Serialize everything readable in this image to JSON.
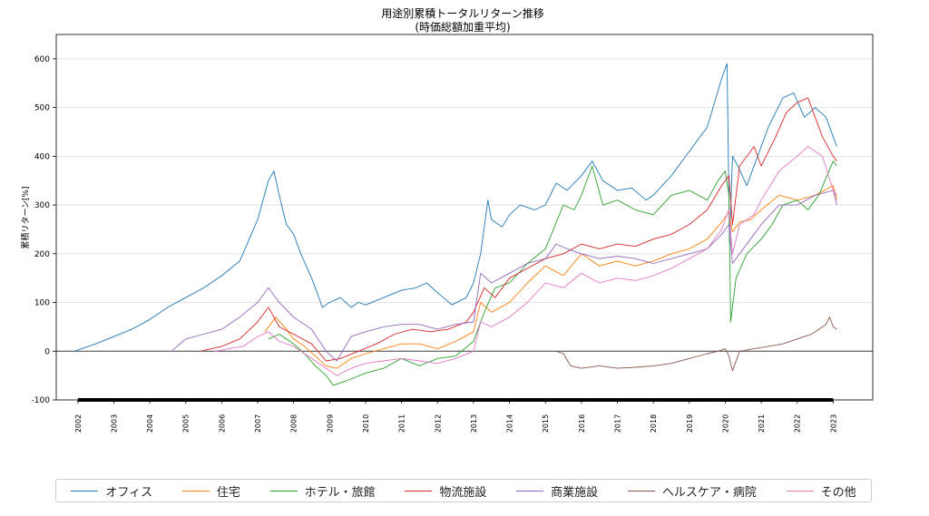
{
  "chart_data": {
    "type": "line",
    "title": "用途別累積トータルリターン推移",
    "subtitle": "(時価総額加重平均)",
    "xlabel": "",
    "ylabel": "累積リターン[%]",
    "xlim": [
      2001.4,
      2024.1
    ],
    "ylim": [
      -100,
      650
    ],
    "yticks": [
      -100,
      0,
      100,
      200,
      300,
      400,
      500,
      600
    ],
    "xticks": [
      "2002",
      "2003",
      "2004",
      "2005",
      "2006",
      "2007",
      "2008",
      "2009",
      "2010",
      "2011",
      "2012",
      "2013",
      "2014",
      "2015",
      "2016",
      "2017",
      "2018",
      "2019",
      "2020",
      "2021",
      "2022",
      "2023"
    ],
    "grid": "y",
    "legend_position": "bottom",
    "series": [
      {
        "name": "オフィス",
        "color": "#1f77b4",
        "x": [
          2001.9,
          2002.5,
          2003.0,
          2003.5,
          2004.0,
          2004.5,
          2005.0,
          2005.5,
          2006.0,
          2006.5,
          2007.0,
          2007.3,
          2007.45,
          2007.6,
          2007.8,
          2008.0,
          2008.2,
          2008.5,
          2008.8,
          2009.0,
          2009.3,
          2009.6,
          2009.8,
          2010.0,
          2010.5,
          2011.0,
          2011.4,
          2011.7,
          2012.0,
          2012.4,
          2012.8,
          2013.0,
          2013.2,
          2013.4,
          2013.5,
          2013.8,
          2014.0,
          2014.3,
          2014.7,
          2015.0,
          2015.3,
          2015.6,
          2016.0,
          2016.3,
          2016.6,
          2017.0,
          2017.4,
          2017.8,
          2018.0,
          2018.5,
          2019.0,
          2019.5,
          2019.9,
          2020.05,
          2020.12,
          2020.2,
          2020.35,
          2020.6,
          2020.9,
          2021.2,
          2021.6,
          2021.9,
          2022.2,
          2022.5,
          2022.8,
          2023.0,
          2023.1
        ],
        "y": [
          0,
          15,
          30,
          45,
          65,
          90,
          110,
          130,
          155,
          185,
          270,
          350,
          370,
          320,
          260,
          240,
          200,
          150,
          90,
          100,
          110,
          90,
          100,
          95,
          110,
          125,
          130,
          140,
          120,
          95,
          110,
          140,
          200,
          310,
          270,
          255,
          280,
          300,
          290,
          300,
          345,
          330,
          360,
          390,
          350,
          330,
          335,
          310,
          320,
          360,
          410,
          460,
          560,
          590,
          220,
          400,
          380,
          340,
          400,
          460,
          520,
          530,
          480,
          500,
          480,
          440,
          420
        ]
      },
      {
        "name": "住宅",
        "color": "#ff7f0e",
        "x": [
          2007.2,
          2007.5,
          2007.8,
          2008.0,
          2008.3,
          2008.6,
          2008.9,
          2009.2,
          2009.6,
          2010.0,
          2010.5,
          2011.0,
          2011.5,
          2012.0,
          2012.5,
          2013.0,
          2013.2,
          2013.5,
          2014.0,
          2014.5,
          2015.0,
          2015.5,
          2016.0,
          2016.5,
          2017.0,
          2017.5,
          2018.0,
          2018.5,
          2019.0,
          2019.5,
          2019.9,
          2020.1,
          2020.2,
          2020.4,
          2020.7,
          2021.0,
          2021.5,
          2022.0,
          2022.5,
          2023.0,
          2023.1
        ],
        "y": [
          40,
          70,
          45,
          25,
          10,
          -10,
          -30,
          -35,
          -15,
          -5,
          5,
          15,
          15,
          5,
          20,
          40,
          100,
          80,
          100,
          140,
          175,
          155,
          200,
          175,
          185,
          175,
          185,
          200,
          210,
          230,
          265,
          285,
          245,
          265,
          270,
          290,
          320,
          310,
          320,
          340,
          310
        ]
      },
      {
        "name": "ホテル・旅館",
        "color": "#2ca02c",
        "x": [
          2007.3,
          2007.6,
          2008.0,
          2008.3,
          2008.6,
          2008.9,
          2009.1,
          2009.5,
          2010.0,
          2010.5,
          2011.0,
          2011.5,
          2012.0,
          2012.5,
          2013.0,
          2013.3,
          2013.6,
          2014.0,
          2014.5,
          2015.0,
          2015.5,
          2015.8,
          2016.0,
          2016.3,
          2016.6,
          2017.0,
          2017.5,
          2018.0,
          2018.5,
          2019.0,
          2019.5,
          2019.8,
          2020.0,
          2020.1,
          2020.15,
          2020.3,
          2020.6,
          2021.0,
          2021.3,
          2021.6,
          2022.0,
          2022.3,
          2022.6,
          2023.0,
          2023.1
        ],
        "y": [
          25,
          35,
          15,
          -5,
          -30,
          -50,
          -70,
          -60,
          -45,
          -35,
          -15,
          -30,
          -15,
          -10,
          20,
          80,
          130,
          140,
          180,
          210,
          300,
          290,
          320,
          380,
          300,
          310,
          290,
          280,
          320,
          330,
          310,
          350,
          370,
          320,
          60,
          150,
          200,
          230,
          260,
          300,
          310,
          290,
          320,
          390,
          380
        ]
      },
      {
        "name": "物流施設",
        "color": "#d62728",
        "x": [
          2005.4,
          2006.0,
          2006.5,
          2007.0,
          2007.3,
          2007.6,
          2008.0,
          2008.5,
          2008.9,
          2009.3,
          2009.8,
          2010.3,
          2010.8,
          2011.3,
          2011.8,
          2012.3,
          2012.8,
          2013.0,
          2013.3,
          2013.6,
          2014.0,
          2014.5,
          2015.0,
          2015.5,
          2016.0,
          2016.5,
          2017.0,
          2017.5,
          2018.0,
          2018.5,
          2019.0,
          2019.5,
          2019.9,
          2020.1,
          2020.2,
          2020.4,
          2020.8,
          2021.0,
          2021.4,
          2021.7,
          2022.0,
          2022.3,
          2022.7,
          2023.0,
          2023.1
        ],
        "y": [
          0,
          10,
          25,
          60,
          90,
          50,
          35,
          15,
          -20,
          -15,
          0,
          15,
          35,
          45,
          40,
          45,
          60,
          80,
          130,
          110,
          150,
          170,
          190,
          200,
          220,
          210,
          220,
          215,
          230,
          240,
          260,
          290,
          340,
          360,
          260,
          380,
          420,
          380,
          440,
          490,
          510,
          520,
          440,
          400,
          390
        ]
      },
      {
        "name": "商業施設",
        "color": "#9467bd",
        "x": [
          2004.6,
          2005.0,
          2005.5,
          2006.0,
          2006.5,
          2007.0,
          2007.3,
          2007.6,
          2008.0,
          2008.5,
          2008.9,
          2009.2,
          2009.6,
          2010.0,
          2010.5,
          2011.0,
          2011.5,
          2012.0,
          2012.5,
          2013.0,
          2013.2,
          2013.5,
          2014.0,
          2014.5,
          2015.0,
          2015.3,
          2015.6,
          2016.0,
          2016.5,
          2017.0,
          2017.5,
          2018.0,
          2018.5,
          2019.0,
          2019.5,
          2019.9,
          2020.1,
          2020.2,
          2020.4,
          2020.8,
          2021.0,
          2021.5,
          2022.0,
          2022.5,
          2023.0,
          2023.1
        ],
        "y": [
          0,
          25,
          35,
          45,
          70,
          100,
          130,
          100,
          70,
          45,
          0,
          -20,
          30,
          40,
          50,
          55,
          55,
          45,
          55,
          60,
          160,
          140,
          160,
          180,
          190,
          220,
          210,
          200,
          190,
          195,
          190,
          180,
          190,
          200,
          210,
          240,
          260,
          180,
          200,
          240,
          260,
          300,
          300,
          320,
          330,
          300
        ]
      },
      {
        "name": "ヘルスケア・病院",
        "color": "#8c564b",
        "x": [
          2015.3,
          2015.5,
          2015.7,
          2016.0,
          2016.5,
          2017.0,
          2017.5,
          2018.0,
          2018.5,
          2019.0,
          2019.5,
          2019.8,
          2020.0,
          2020.1,
          2020.2,
          2020.4,
          2020.8,
          2021.2,
          2021.6,
          2022.0,
          2022.4,
          2022.8,
          2022.9,
          2023.0,
          2023.1
        ],
        "y": [
          0,
          -5,
          -30,
          -35,
          -30,
          -35,
          -33,
          -30,
          -25,
          -15,
          -5,
          0,
          5,
          -10,
          -40,
          0,
          5,
          10,
          15,
          25,
          35,
          55,
          70,
          50,
          45
        ]
      },
      {
        "name": "その他",
        "color": "#e377c2",
        "x": [
          2005.8,
          2006.2,
          2006.6,
          2007.0,
          2007.3,
          2007.6,
          2008.0,
          2008.4,
          2008.8,
          2009.2,
          2009.6,
          2010.0,
          2010.5,
          2011.0,
          2011.5,
          2012.0,
          2012.5,
          2013.0,
          2013.2,
          2013.5,
          2014.0,
          2014.5,
          2015.0,
          2015.5,
          2016.0,
          2016.5,
          2017.0,
          2017.5,
          2018.0,
          2018.5,
          2019.0,
          2019.5,
          2019.9,
          2020.1,
          2020.2,
          2020.4,
          2020.8,
          2021.0,
          2021.5,
          2022.0,
          2022.3,
          2022.7,
          2023.0,
          2023.1
        ],
        "y": [
          0,
          5,
          10,
          30,
          40,
          20,
          10,
          -10,
          -30,
          -50,
          -35,
          -25,
          -20,
          -15,
          -20,
          -25,
          -15,
          0,
          60,
          50,
          70,
          100,
          140,
          130,
          160,
          140,
          150,
          145,
          155,
          170,
          190,
          210,
          250,
          290,
          200,
          260,
          280,
          310,
          370,
          400,
          420,
          400,
          330,
          320
        ]
      }
    ]
  }
}
